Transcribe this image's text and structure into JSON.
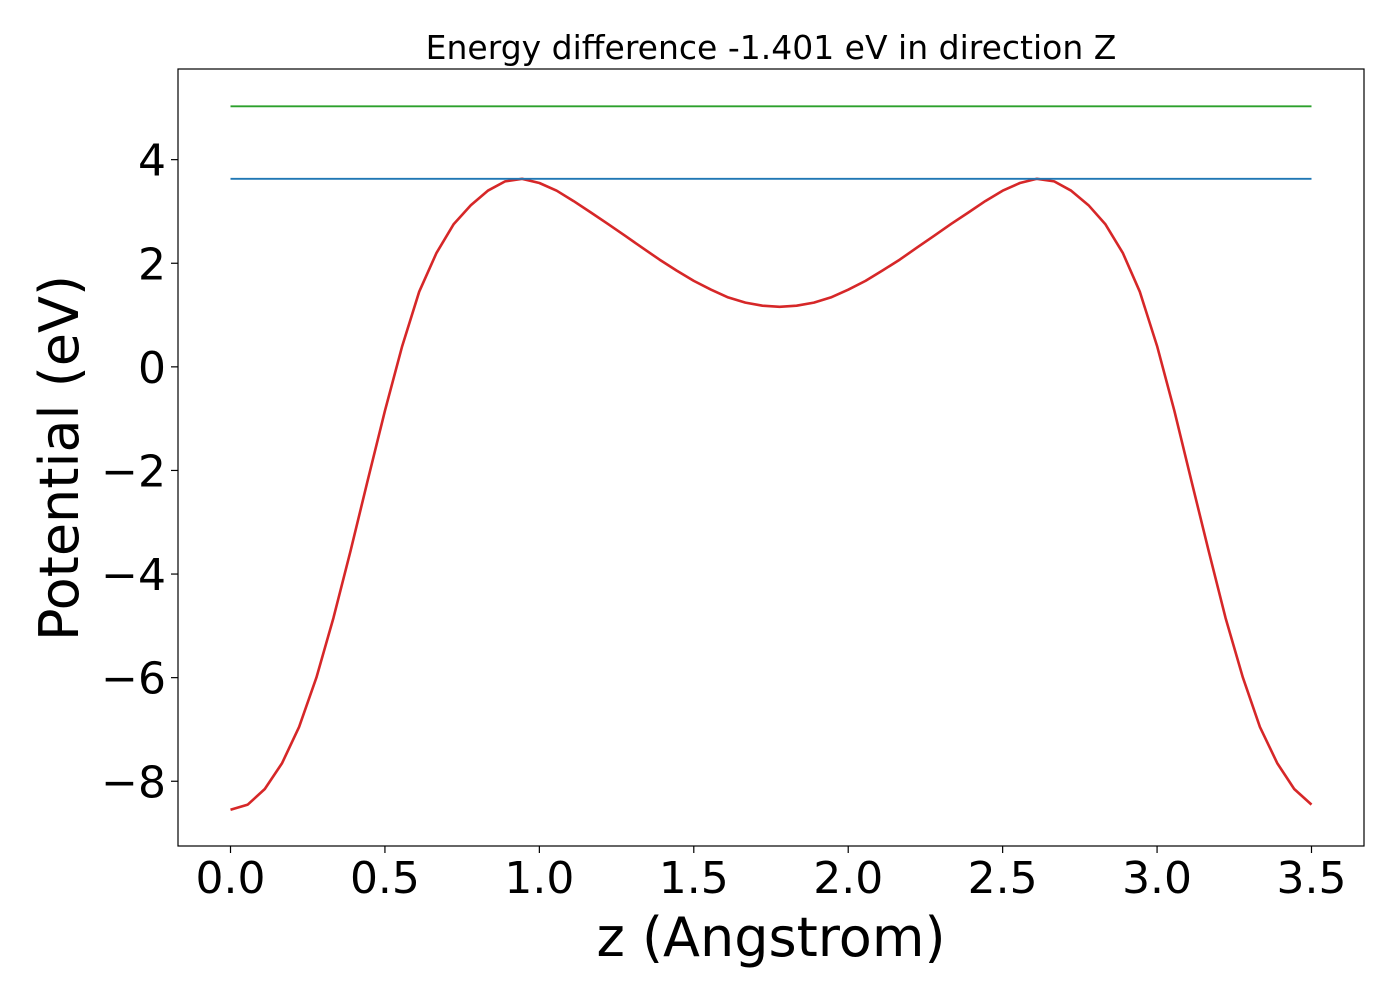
{
  "chart_data": {
    "type": "line",
    "title": "Energy difference -1.401 eV in direction Z",
    "xlabel": "z (Angstrom)",
    "ylabel": "Potential (eV)",
    "xlim": [
      -0.17,
      3.67
    ],
    "ylim": [
      -9.25,
      5.75
    ],
    "xticks": [
      0.0,
      0.5,
      1.0,
      1.5,
      2.0,
      2.5,
      3.0,
      3.5
    ],
    "xtick_labels": [
      "0.0",
      "0.5",
      "1.0",
      "1.5",
      "2.0",
      "2.5",
      "3.0",
      "3.5"
    ],
    "yticks": [
      -8,
      -6,
      -4,
      -2,
      0,
      2,
      4
    ],
    "ytick_labels": [
      "−8",
      "−6",
      "−4",
      "−2",
      "0",
      "2",
      "4"
    ],
    "grid": false,
    "series": [
      {
        "color": "#d62728",
        "x": [
          0.0,
          0.056,
          0.111,
          0.167,
          0.222,
          0.278,
          0.333,
          0.389,
          0.444,
          0.5,
          0.556,
          0.611,
          0.667,
          0.722,
          0.778,
          0.833,
          0.889,
          0.944,
          1.0,
          1.056,
          1.111,
          1.167,
          1.222,
          1.278,
          1.333,
          1.389,
          1.444,
          1.5,
          1.556,
          1.611,
          1.667,
          1.722,
          1.778,
          1.833,
          1.889,
          1.944,
          2.0,
          2.056,
          2.111,
          2.167,
          2.222,
          2.278,
          2.333,
          2.389,
          2.444,
          2.5,
          2.556,
          2.611,
          2.667,
          2.722,
          2.778,
          2.833,
          2.889,
          2.944,
          3.0,
          3.056,
          3.111,
          3.167,
          3.222,
          3.278,
          3.333,
          3.389,
          3.444,
          3.5
        ],
        "y": [
          -8.55,
          -8.45,
          -8.15,
          -7.65,
          -6.95,
          -6.0,
          -4.85,
          -3.55,
          -2.2,
          -0.85,
          0.4,
          1.45,
          2.2,
          2.75,
          3.12,
          3.4,
          3.58,
          3.63,
          3.55,
          3.4,
          3.2,
          2.98,
          2.76,
          2.53,
          2.3,
          2.07,
          1.86,
          1.66,
          1.49,
          1.34,
          1.24,
          1.18,
          1.16,
          1.18,
          1.24,
          1.34,
          1.49,
          1.66,
          1.86,
          2.07,
          2.3,
          2.53,
          2.76,
          2.98,
          3.2,
          3.4,
          3.55,
          3.63,
          3.58,
          3.4,
          3.12,
          2.75,
          2.2,
          1.45,
          0.4,
          -0.85,
          -2.2,
          -3.55,
          -4.85,
          -6.0,
          -6.95,
          -7.65,
          -8.15,
          -8.45
        ]
      },
      {
        "color": "#1f77b4",
        "x": [
          0.0,
          3.5
        ],
        "y": [
          3.63,
          3.63
        ]
      },
      {
        "color": "#2ca02c",
        "x": [
          0.0,
          3.5
        ],
        "y": [
          5.03,
          5.03
        ]
      }
    ]
  }
}
